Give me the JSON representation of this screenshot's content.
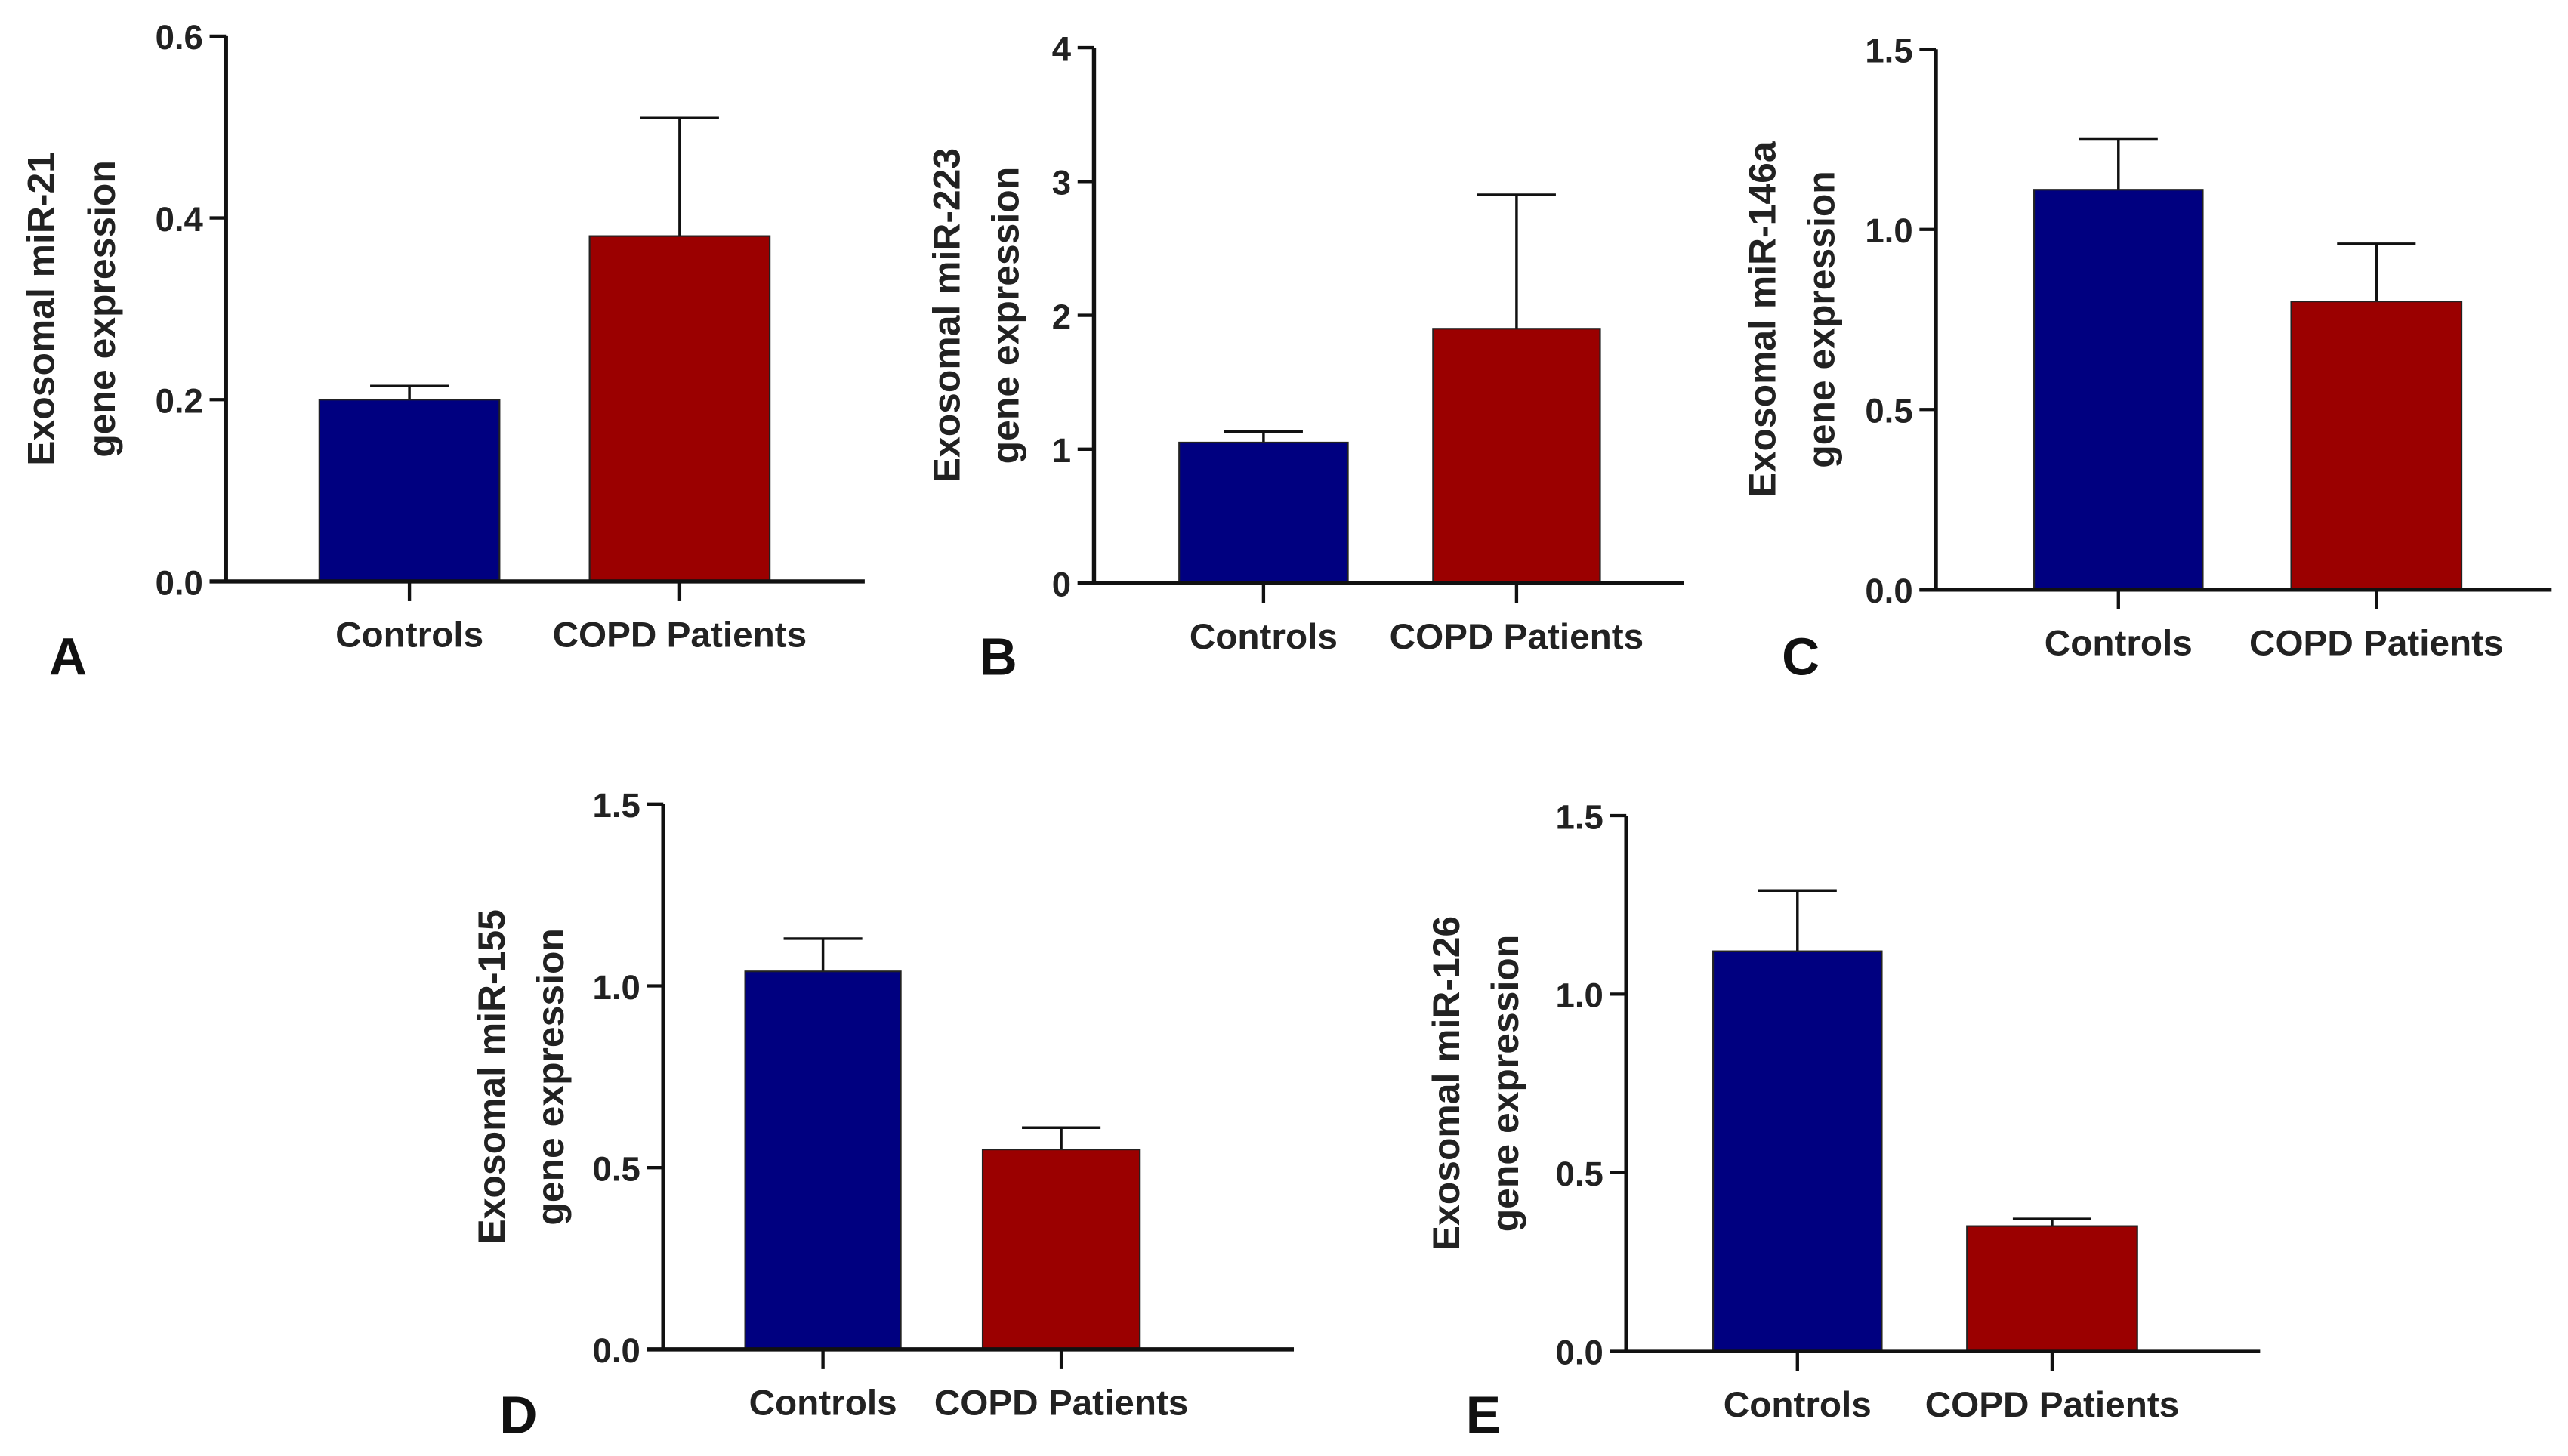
{
  "chart_data": [
    {
      "panel": "A",
      "type": "bar",
      "ylabel": [
        "Exosomal miR-21",
        "gene expression"
      ],
      "categories": [
        "Controls",
        "COPD Patients"
      ],
      "values": [
        0.2,
        0.38
      ],
      "error_upper": [
        0.215,
        0.51
      ],
      "ylim": [
        0,
        0.6
      ],
      "yticks": [
        0.0,
        0.2,
        0.4,
        0.6
      ],
      "ytick_labels": [
        "0.0",
        "0.2",
        "0.4",
        "0.6"
      ]
    },
    {
      "panel": "B",
      "type": "bar",
      "ylabel": [
        "Exosomal miR-223",
        "gene expression"
      ],
      "categories": [
        "Controls",
        "COPD Patients"
      ],
      "values": [
        1.05,
        1.9
      ],
      "error_upper": [
        1.13,
        2.9
      ],
      "ylim": [
        0,
        4
      ],
      "yticks": [
        0,
        1,
        2,
        3,
        4
      ],
      "ytick_labels": [
        "0",
        "1",
        "2",
        "3",
        "4"
      ]
    },
    {
      "panel": "C",
      "type": "bar",
      "ylabel": [
        "Exosomal miR-146a",
        "gene expression"
      ],
      "categories": [
        "Controls",
        "COPD Patients"
      ],
      "values": [
        1.11,
        0.8
      ],
      "error_upper": [
        1.25,
        0.96
      ],
      "ylim": [
        0,
        1.5
      ],
      "yticks": [
        0.0,
        0.5,
        1.0,
        1.5
      ],
      "ytick_labels": [
        "0.0",
        "0.5",
        "1.0",
        "1.5"
      ]
    },
    {
      "panel": "D",
      "type": "bar",
      "ylabel": [
        "Exosomal miR-155",
        "gene expression"
      ],
      "categories": [
        "Controls",
        "COPD Patients"
      ],
      "values": [
        1.04,
        0.55
      ],
      "error_upper": [
        1.13,
        0.61
      ],
      "ylim": [
        0,
        1.5
      ],
      "yticks": [
        0.0,
        0.5,
        1.0,
        1.5
      ],
      "ytick_labels": [
        "0.0",
        "0.5",
        "1.0",
        "1.5"
      ]
    },
    {
      "panel": "E",
      "type": "bar",
      "ylabel": [
        "Exosomal miR-126",
        "gene expression"
      ],
      "categories": [
        "Controls",
        "COPD Patients"
      ],
      "values": [
        1.12,
        0.35
      ],
      "error_upper": [
        1.29,
        0.37
      ],
      "ylim": [
        0,
        1.5
      ],
      "yticks": [
        0.0,
        0.5,
        1.0,
        1.5
      ],
      "ytick_labels": [
        "0.0",
        "0.5",
        "1.0",
        "1.5"
      ]
    }
  ],
  "colors": {
    "controls": "#000080",
    "copd": "#9b0000",
    "axis": "#111111"
  }
}
